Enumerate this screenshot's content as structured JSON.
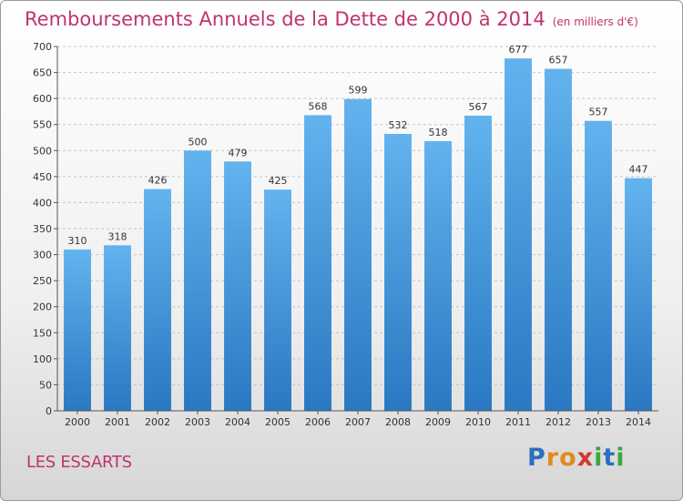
{
  "chart_data": {
    "type": "bar",
    "title": "Remboursements Annuels de la Dette de 2000 à 2014",
    "subtitle": "(en milliers d'€)",
    "categories": [
      "2000",
      "2001",
      "2002",
      "2003",
      "2004",
      "2005",
      "2006",
      "2007",
      "2008",
      "2009",
      "2010",
      "2011",
      "2012",
      "2013",
      "2014"
    ],
    "values": [
      310,
      318,
      426,
      500,
      479,
      425,
      568,
      599,
      532,
      518,
      567,
      677,
      657,
      557,
      447
    ],
    "ylim": [
      0,
      700
    ],
    "yticks": [
      0,
      50,
      100,
      150,
      200,
      250,
      300,
      350,
      400,
      450,
      500,
      550,
      600,
      650,
      700
    ],
    "grid": "horizontal dashed",
    "bar_color": "#3a8fd6",
    "xlabel": "",
    "ylabel": ""
  },
  "footer": {
    "commune": "LES ESSARTS",
    "logo_letters": [
      "P",
      "r",
      "o",
      "x",
      "i",
      "t",
      "i"
    ],
    "logo_colors": [
      "#2a6fc0",
      "#e08a1e",
      "#e08a1e",
      "#d2392e",
      "#3aa83a",
      "#2a6fc0",
      "#3aa83a"
    ]
  },
  "colors": {
    "title": "#c0336f",
    "axis": "#333333"
  }
}
